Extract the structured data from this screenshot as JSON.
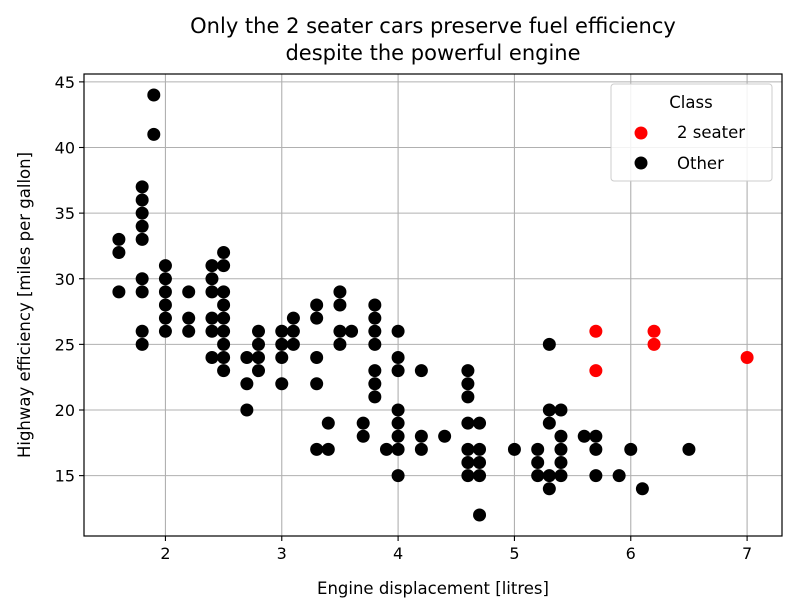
{
  "chart_data": {
    "type": "scatter",
    "title_line1": "Only the 2 seater cars preserve fuel efficiency",
    "title_line2": "despite the powerful engine",
    "xlabel": "Engine displacement [litres]",
    "ylabel": "Highway efficiency [miles per gallon]",
    "xlim": [
      1.3,
      7.3
    ],
    "ylim": [
      10.4,
      45.6
    ],
    "xticks": [
      2,
      3,
      4,
      5,
      6,
      7
    ],
    "yticks": [
      15,
      20,
      25,
      30,
      35,
      40,
      45
    ],
    "grid": true,
    "legend": {
      "title": "Class",
      "position": "top-right",
      "entries": [
        "2 seater",
        "Other"
      ]
    },
    "series": [
      {
        "name": "2 seater",
        "color": "#ff0000",
        "points": [
          [
            5.7,
            26
          ],
          [
            5.7,
            23
          ],
          [
            6.2,
            26
          ],
          [
            6.2,
            25
          ],
          [
            7.0,
            24
          ]
        ]
      },
      {
        "name": "Other",
        "color": "#000000",
        "points": [
          [
            1.6,
            33
          ],
          [
            1.6,
            32
          ],
          [
            1.6,
            29
          ],
          [
            1.8,
            37
          ],
          [
            1.8,
            36
          ],
          [
            1.8,
            35
          ],
          [
            1.8,
            34
          ],
          [
            1.8,
            33
          ],
          [
            1.8,
            30
          ],
          [
            1.8,
            29
          ],
          [
            1.8,
            26
          ],
          [
            1.8,
            25
          ],
          [
            1.9,
            44
          ],
          [
            1.9,
            41
          ],
          [
            2.0,
            31
          ],
          [
            2.0,
            30
          ],
          [
            2.0,
            29
          ],
          [
            2.0,
            28
          ],
          [
            2.0,
            27
          ],
          [
            2.0,
            26
          ],
          [
            2.2,
            29
          ],
          [
            2.2,
            27
          ],
          [
            2.2,
            26
          ],
          [
            2.4,
            31
          ],
          [
            2.4,
            30
          ],
          [
            2.4,
            29
          ],
          [
            2.4,
            27
          ],
          [
            2.4,
            26
          ],
          [
            2.4,
            24
          ],
          [
            2.5,
            32
          ],
          [
            2.5,
            31
          ],
          [
            2.5,
            29
          ],
          [
            2.5,
            28
          ],
          [
            2.5,
            27
          ],
          [
            2.5,
            26
          ],
          [
            2.5,
            25
          ],
          [
            2.5,
            24
          ],
          [
            2.5,
            23
          ],
          [
            2.7,
            24
          ],
          [
            2.7,
            22
          ],
          [
            2.7,
            20
          ],
          [
            2.8,
            26
          ],
          [
            2.8,
            25
          ],
          [
            2.8,
            24
          ],
          [
            2.8,
            23
          ],
          [
            3.0,
            26
          ],
          [
            3.0,
            25
          ],
          [
            3.0,
            24
          ],
          [
            3.0,
            22
          ],
          [
            3.1,
            27
          ],
          [
            3.1,
            26
          ],
          [
            3.1,
            25
          ],
          [
            3.3,
            28
          ],
          [
            3.3,
            27
          ],
          [
            3.3,
            24
          ],
          [
            3.3,
            22
          ],
          [
            3.3,
            17
          ],
          [
            3.4,
            19
          ],
          [
            3.4,
            17
          ],
          [
            3.5,
            29
          ],
          [
            3.5,
            28
          ],
          [
            3.5,
            26
          ],
          [
            3.5,
            25
          ],
          [
            3.6,
            26
          ],
          [
            3.7,
            19
          ],
          [
            3.7,
            18
          ],
          [
            3.8,
            28
          ],
          [
            3.8,
            27
          ],
          [
            3.8,
            26
          ],
          [
            3.8,
            25
          ],
          [
            3.8,
            23
          ],
          [
            3.8,
            22
          ],
          [
            3.8,
            21
          ],
          [
            3.9,
            17
          ],
          [
            4.0,
            26
          ],
          [
            4.0,
            24
          ],
          [
            4.0,
            23
          ],
          [
            4.0,
            20
          ],
          [
            4.0,
            19
          ],
          [
            4.0,
            18
          ],
          [
            4.0,
            17
          ],
          [
            4.0,
            15
          ],
          [
            4.2,
            23
          ],
          [
            4.2,
            18
          ],
          [
            4.2,
            17
          ],
          [
            4.4,
            18
          ],
          [
            4.6,
            23
          ],
          [
            4.6,
            22
          ],
          [
            4.6,
            21
          ],
          [
            4.6,
            19
          ],
          [
            4.6,
            17
          ],
          [
            4.6,
            16
          ],
          [
            4.6,
            15
          ],
          [
            4.7,
            19
          ],
          [
            4.7,
            17
          ],
          [
            4.7,
            16
          ],
          [
            4.7,
            15
          ],
          [
            4.7,
            12
          ],
          [
            5.0,
            17
          ],
          [
            5.2,
            17
          ],
          [
            5.2,
            16
          ],
          [
            5.2,
            15
          ],
          [
            5.3,
            25
          ],
          [
            5.3,
            20
          ],
          [
            5.3,
            19
          ],
          [
            5.3,
            15
          ],
          [
            5.3,
            14
          ],
          [
            5.4,
            20
          ],
          [
            5.4,
            18
          ],
          [
            5.4,
            17
          ],
          [
            5.4,
            16
          ],
          [
            5.4,
            15
          ],
          [
            5.6,
            18
          ],
          [
            5.7,
            18
          ],
          [
            5.7,
            17
          ],
          [
            5.7,
            15
          ],
          [
            5.9,
            15
          ],
          [
            6.0,
            17
          ],
          [
            6.1,
            14
          ],
          [
            6.5,
            17
          ]
        ]
      }
    ]
  }
}
